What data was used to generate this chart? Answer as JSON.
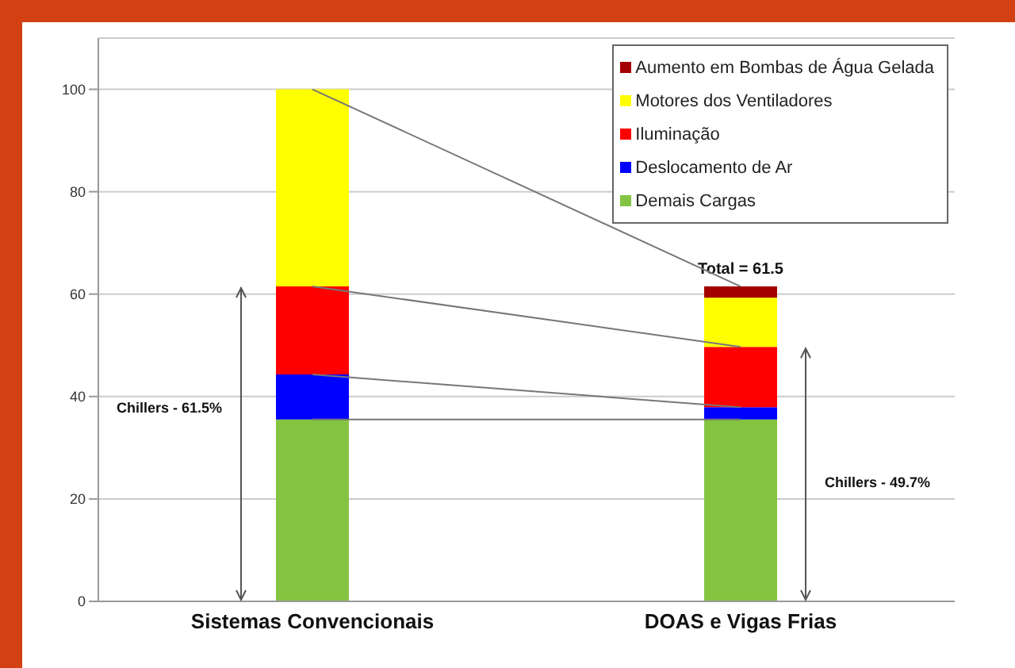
{
  "chart_data": {
    "type": "bar",
    "stacked": true,
    "categories": [
      "Sistemas Convencionais",
      "DOAS e Vigas Frias"
    ],
    "series": [
      {
        "name": "Demais Cargas",
        "color": "#84c441",
        "values": [
          35.5,
          35.5
        ]
      },
      {
        "name": "Deslocamento de Ar",
        "color": "#0000ff",
        "values": [
          8.8,
          2.4
        ]
      },
      {
        "name": "Iluminação",
        "color": "#ff0000",
        "values": [
          17.2,
          11.8
        ]
      },
      {
        "name": "Motores dos Ventiladores",
        "color": "#ffff00",
        "values": [
          38.5,
          9.6
        ]
      },
      {
        "name": "Aumento em Bombas de Água Gelada",
        "color": "#a50000",
        "values": [
          0,
          2.2
        ]
      },
      {
        "type": "line",
        "color": "#777777",
        "values": [
          35.5,
          35.5
        ]
      },
      {
        "type": "line",
        "color": "#777777",
        "values": [
          44.3,
          37.9
        ]
      },
      {
        "type": "line",
        "color": "#777777",
        "values": [
          61.5,
          49.7
        ]
      },
      {
        "type": "line",
        "color": "#777777",
        "values": [
          100,
          61.5
        ]
      }
    ],
    "ylim": [
      0,
      110
    ],
    "yticks": [
      0,
      20,
      40,
      60,
      80,
      100
    ],
    "grid": "y",
    "legend": "top right",
    "marker": "none",
    "totals": [
      null,
      "Total = 61.5"
    ],
    "annotations": [
      "Chillers - 61.5%",
      "Chillers - 49.7%"
    ]
  }
}
